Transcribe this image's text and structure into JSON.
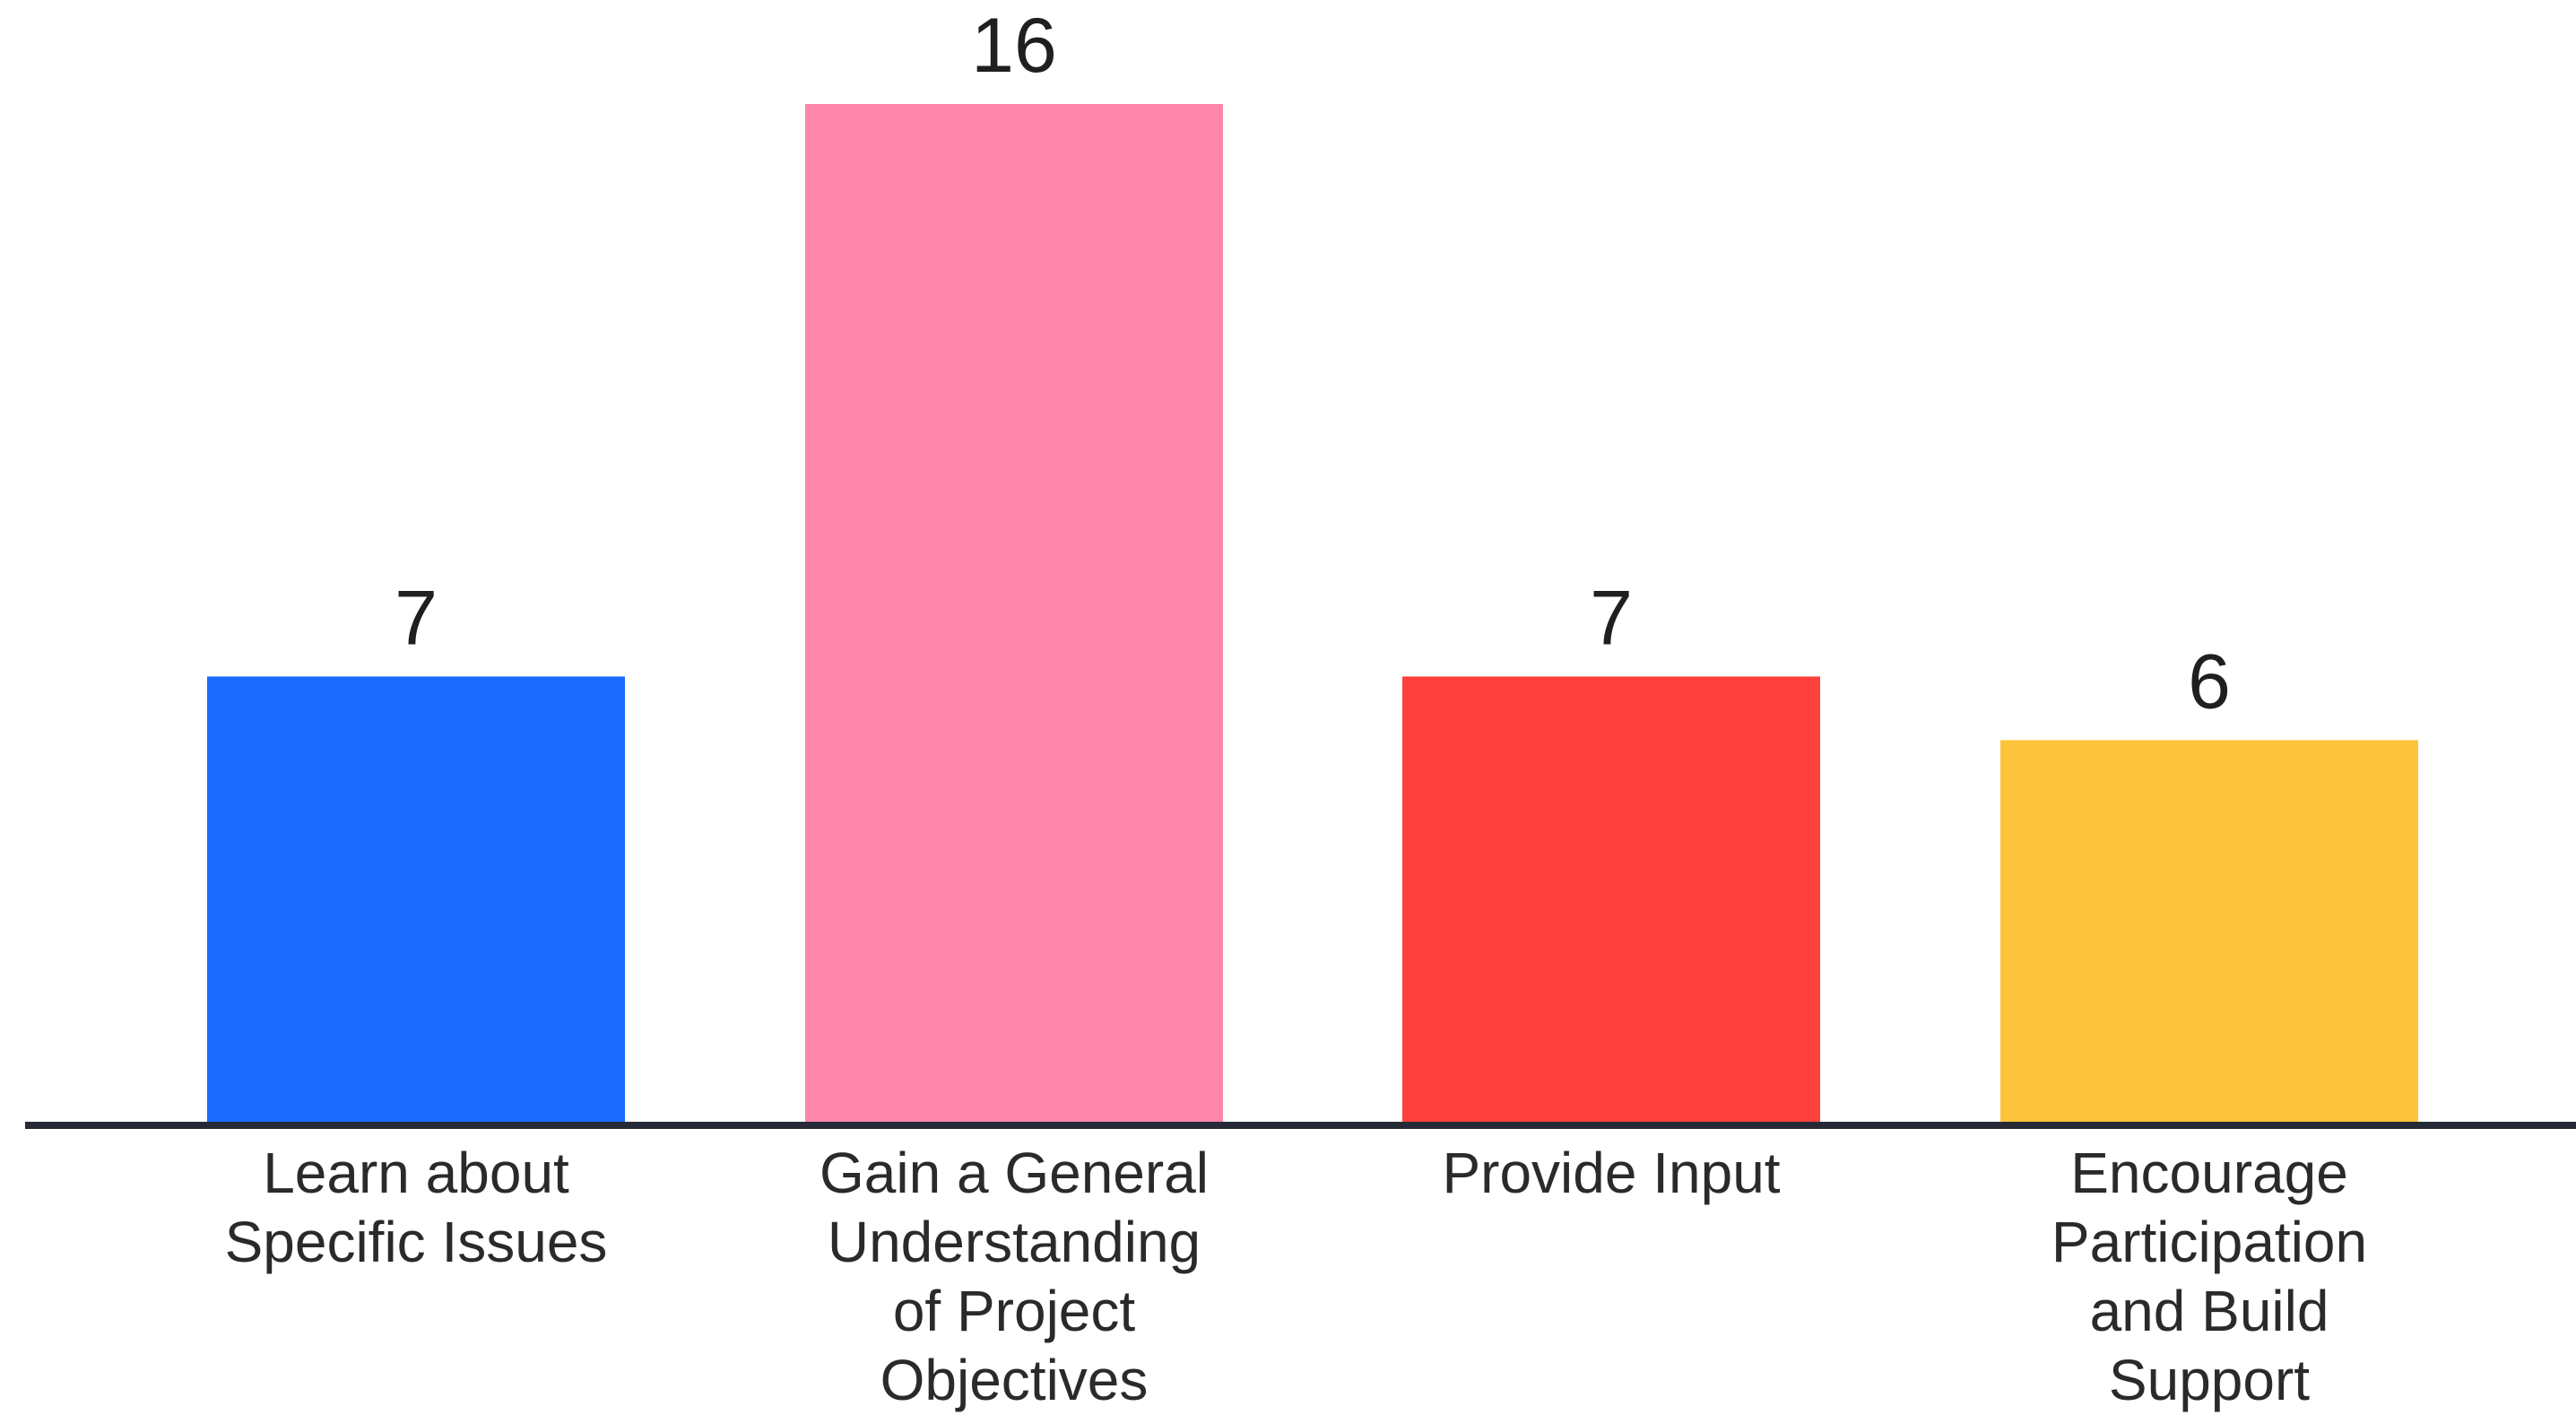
{
  "chart_data": {
    "type": "bar",
    "categories": [
      [
        "Learn about",
        "Specific Issues"
      ],
      [
        "Gain a General",
        "Understanding",
        "of Project",
        "Objectives"
      ],
      [
        "Provide Input"
      ],
      [
        "Encourage",
        "Participation",
        "and Build",
        "Support"
      ]
    ],
    "values": [
      7,
      16,
      7,
      6
    ],
    "value_labels": [
      "7",
      "16",
      "7",
      "6"
    ],
    "colors": [
      "#1c6bff",
      "#ff85ab",
      "#ff413d",
      "#fdc43b"
    ],
    "ylim": [
      0,
      16
    ],
    "grid": false,
    "legend": "none",
    "title": "",
    "xlabel": "",
    "ylabel": ""
  }
}
